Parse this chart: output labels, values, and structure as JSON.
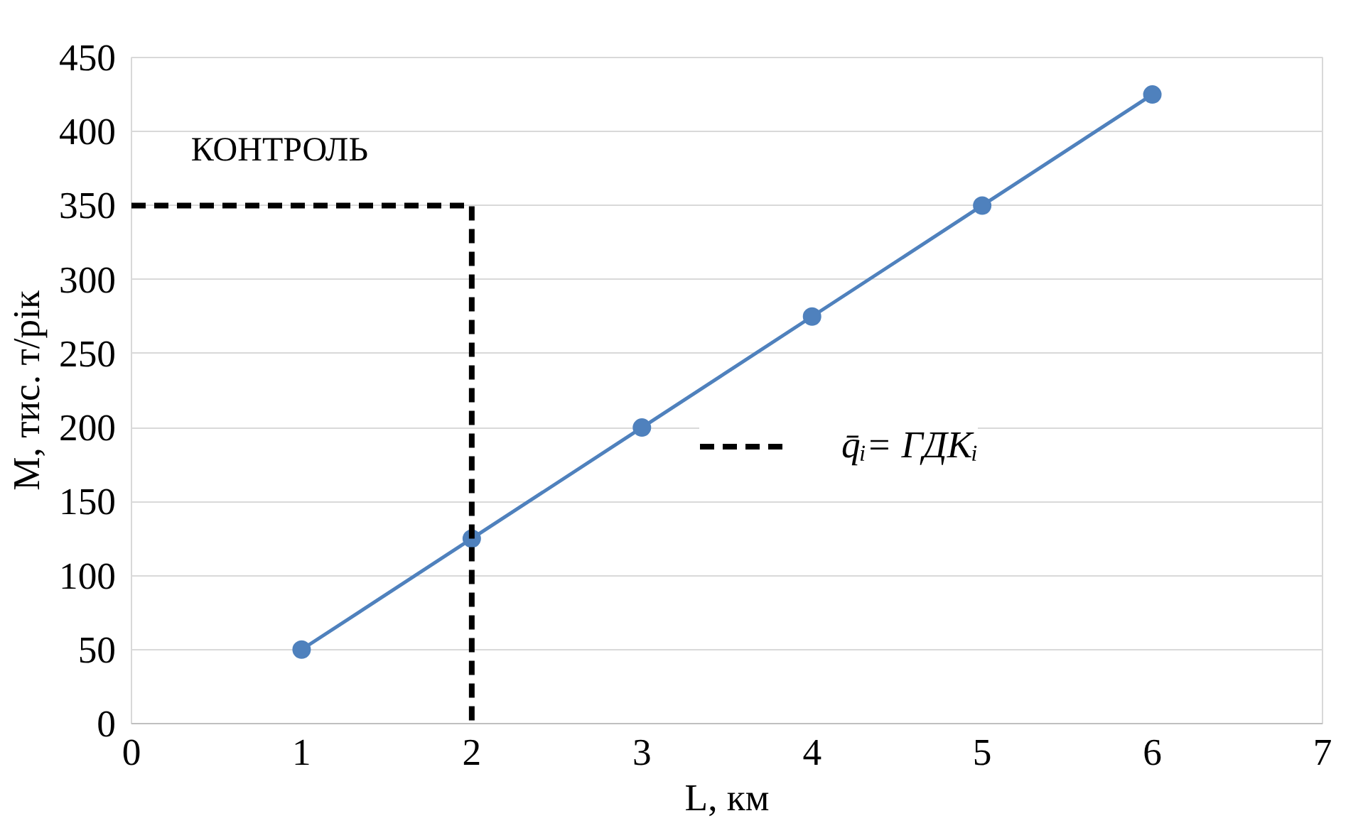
{
  "chart_data": {
    "type": "line",
    "xlabel": "L, км",
    "ylabel": "M, тис. т/рік",
    "xlim": [
      0,
      7
    ],
    "xticks": [
      0,
      1,
      2,
      3,
      4,
      5,
      6,
      7
    ],
    "ylim": [
      0,
      450
    ],
    "yticks": [
      0,
      50,
      100,
      150,
      200,
      250,
      300,
      350,
      400,
      450
    ],
    "grid": "y",
    "legend": "right",
    "series": [
      {
        "color": "#4f81bd",
        "x": [
          1,
          2,
          3,
          4,
          5,
          6
        ],
        "values": [
          50,
          125,
          200,
          275,
          350,
          425
        ],
        "marker": "circle",
        "line_style": "solid"
      },
      {
        "name": "q̄ᵢ= ГДКᵢ",
        "color": "#000000",
        "x": [
          0,
          2,
          2
        ],
        "values": [
          350,
          350,
          0
        ],
        "marker": "none",
        "line_style": "dashed"
      }
    ],
    "annotations": [
      "КОНТРОЛЬ"
    ]
  }
}
